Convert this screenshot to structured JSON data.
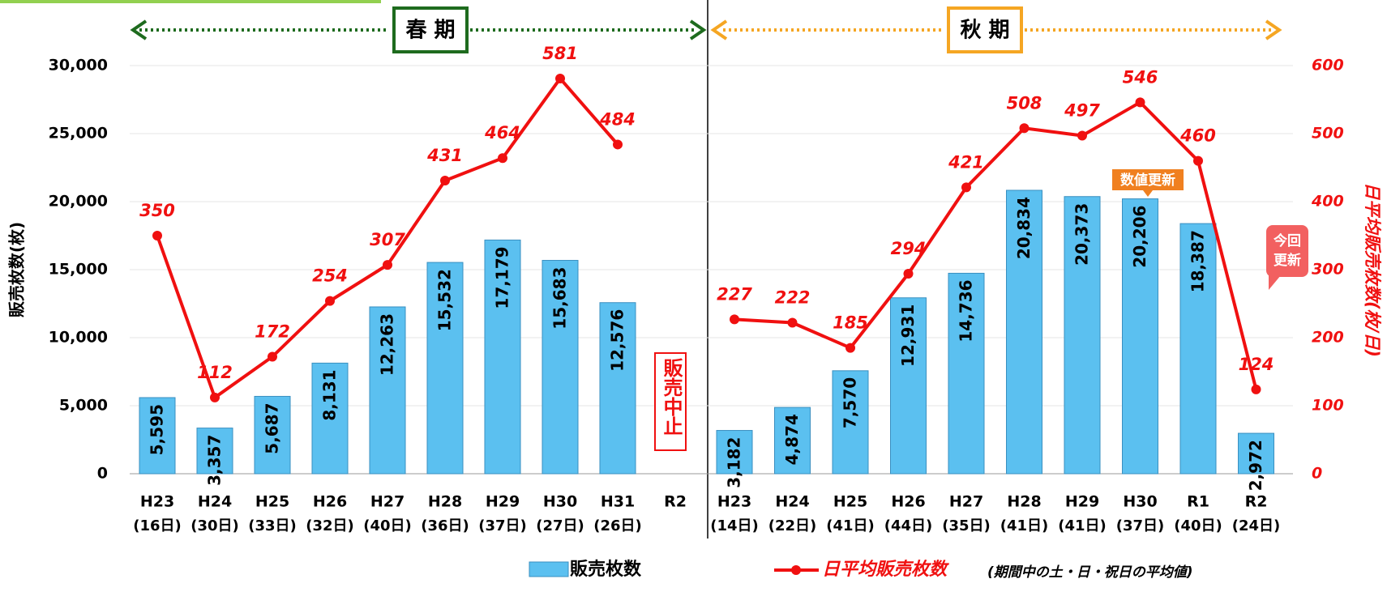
{
  "chart_data": {
    "type": "bar",
    "categories": [
      "H23",
      "H24",
      "H25",
      "H26",
      "H27",
      "H28",
      "H29",
      "H30",
      "H31",
      "R2",
      "H23",
      "H24",
      "H25",
      "H26",
      "H27",
      "H28",
      "H29",
      "H30",
      "R1",
      "R2"
    ],
    "category_sublabels": [
      "(16日)",
      "(30日)",
      "(33日)",
      "(32日)",
      "(40日)",
      "(36日)",
      "(37日)",
      "(27日)",
      "(26日)",
      null,
      "(14日)",
      "(22日)",
      "(41日)",
      "(44日)",
      "(35日)",
      "(41日)",
      "(41日)",
      "(37日)",
      "(40日)",
      "(24日)"
    ],
    "groups": [
      "春 期",
      "秋 期"
    ],
    "ylabel": "販売枚数(枚)",
    "y2label": "日平均販売枚数(枚/日)",
    "ylim": [
      0,
      30000
    ],
    "yticks": [
      0,
      {
        "value": 5000,
        "label": "5,000"
      },
      {
        "value": 10000,
        "label": "10,000"
      },
      {
        "value": 15000,
        "label": "15,000"
      },
      {
        "value": 20000,
        "label": "20,000"
      },
      {
        "value": 25000,
        "label": "25,000"
      },
      {
        "value": 30000,
        "label": "30,000"
      }
    ],
    "y2lim": [
      0,
      600
    ],
    "y2ticks": [
      0,
      100,
      200,
      300,
      400,
      500,
      600
    ],
    "grid": true,
    "series": [
      {
        "name": "販売枚数",
        "color": "#5bc0f0",
        "values": [
          5595,
          3357,
          5687,
          8131,
          12263,
          15532,
          17179,
          15683,
          12576,
          null,
          3182,
          4874,
          7570,
          12931,
          14736,
          20834,
          20373,
          20206,
          18387,
          2972
        ],
        "value_labels": [
          "5,595",
          "3,357",
          "5,687",
          "8,131",
          "12,263",
          "15,532",
          "17,179",
          "15,683",
          "12,576",
          null,
          "3,182",
          "4,874",
          "7,570",
          "12,931",
          "14,736",
          "20,834",
          "20,373",
          "20,206",
          "18,387",
          "2,972"
        ]
      },
      {
        "name": "日平均販売枚数",
        "color": "#f01010",
        "axis": "y2",
        "values": [
          350,
          112,
          172,
          254,
          307,
          431,
          464,
          581,
          484,
          null,
          227,
          222,
          185,
          294,
          421,
          508,
          497,
          546,
          460,
          124
        ]
      }
    ],
    "legend_note": "(期間中の土・日・祝日の平均値)",
    "annotations": {
      "stop": "販売中止",
      "updated": "数値更新",
      "latest": [
        "今回",
        "更新"
      ]
    }
  }
}
